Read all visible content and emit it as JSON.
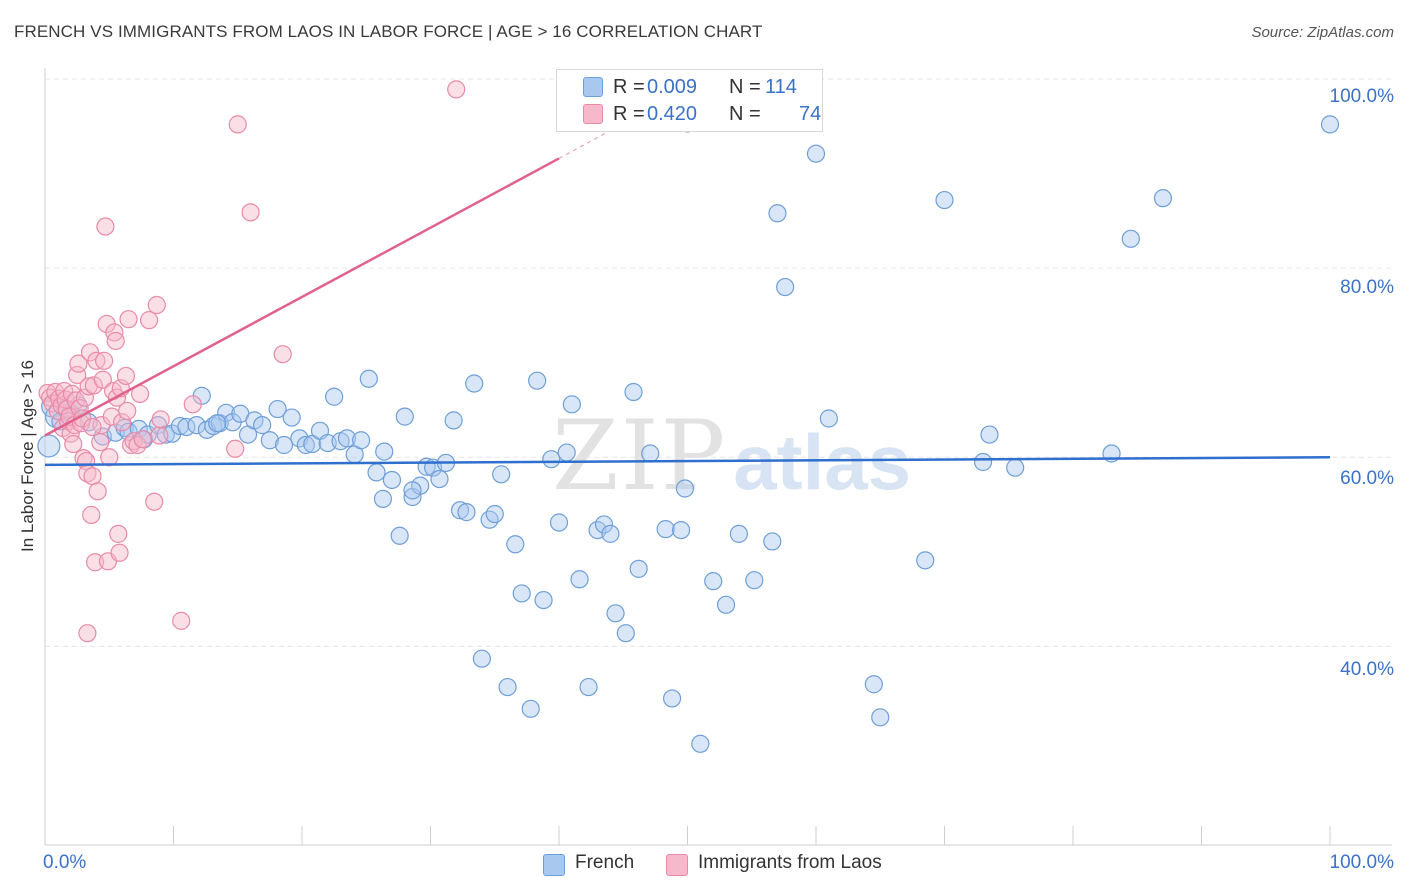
{
  "header": {
    "title": "FRENCH VS IMMIGRANTS FROM LAOS IN LABOR FORCE | AGE > 16 CORRELATION CHART",
    "source": "Source: ZipAtlas.com"
  },
  "watermark": {
    "zip": "ZIP",
    "atlas": "atlas"
  },
  "legend": {
    "french": {
      "r_label": "R =",
      "r_value": "0.009",
      "n_label": "N =",
      "n_value": "114"
    },
    "laos": {
      "r_label": "R =",
      "r_value": "0.420",
      "n_label": "N =",
      "n_value": "74"
    }
  },
  "bottom_legend": {
    "french": "French",
    "laos": "Immigrants from Laos"
  },
  "axes": {
    "ylabel": "In Labor Force | Age > 16",
    "x_min_label": "0.0%",
    "x_max_label": "100.0%",
    "y_tick_labels": [
      "100.0%",
      "80.0%",
      "60.0%",
      "40.0%"
    ]
  },
  "colors": {
    "french_fill": "#a9c8f0",
    "french_stroke": "#6f9fd8",
    "french_line": "#2f6fce",
    "laos_fill": "#f6b8ca",
    "laos_stroke": "#e98aa8",
    "laos_line": "#e0628c",
    "axis_text": "#3a72c9",
    "grid": "#e6e6e6"
  },
  "chart_data": {
    "type": "scatter",
    "title": "FRENCH VS IMMIGRANTS FROM LAOS IN LABOR FORCE | AGE > 16 CORRELATION CHART",
    "xlabel": "",
    "ylabel": "In Labor Force | Age > 16",
    "xlim": [
      0,
      100
    ],
    "ylim": [
      19,
      100
    ],
    "yticks": [
      40,
      60,
      80,
      100
    ],
    "grid": true,
    "legend_position": "top-center",
    "series": [
      {
        "name": "French",
        "r": 0.009,
        "n": 114,
        "trend": {
          "x": [
            0,
            100
          ],
          "y": [
            59.2,
            60.0
          ]
        },
        "points": [
          [
            0.3,
            61.2
          ],
          [
            0.6,
            65.4
          ],
          [
            0.9,
            64.3
          ],
          [
            1.2,
            63.8
          ],
          [
            1.6,
            65.1
          ],
          [
            2.0,
            64.7
          ],
          [
            2.6,
            65.5
          ],
          [
            3.4,
            63.7
          ],
          [
            4.5,
            62.2
          ],
          [
            5.5,
            62.6
          ],
          [
            6.2,
            63.1
          ],
          [
            6.5,
            62.7
          ],
          [
            7.3,
            63.0
          ],
          [
            7.7,
            61.9
          ],
          [
            8.0,
            62.4
          ],
          [
            8.8,
            63.4
          ],
          [
            9.4,
            62.4
          ],
          [
            9.9,
            62.5
          ],
          [
            10.5,
            63.3
          ],
          [
            11.0,
            63.2
          ],
          [
            11.8,
            63.4
          ],
          [
            12.2,
            66.5
          ],
          [
            12.6,
            62.9
          ],
          [
            13.1,
            63.3
          ],
          [
            13.6,
            63.6
          ],
          [
            14.1,
            64.7
          ],
          [
            14.6,
            63.7
          ],
          [
            15.2,
            64.6
          ],
          [
            15.8,
            62.4
          ],
          [
            16.3,
            63.9
          ],
          [
            16.9,
            63.4
          ],
          [
            17.5,
            61.8
          ],
          [
            18.1,
            65.1
          ],
          [
            18.6,
            61.3
          ],
          [
            19.2,
            64.2
          ],
          [
            19.8,
            62.0
          ],
          [
            20.3,
            61.3
          ],
          [
            20.8,
            61.4
          ],
          [
            21.4,
            62.8
          ],
          [
            22.0,
            61.5
          ],
          [
            22.5,
            66.4
          ],
          [
            23.0,
            61.7
          ],
          [
            23.5,
            62.0
          ],
          [
            24.1,
            60.3
          ],
          [
            24.6,
            61.8
          ],
          [
            25.2,
            68.3
          ],
          [
            25.8,
            58.4
          ],
          [
            26.4,
            60.6
          ],
          [
            27.0,
            57.6
          ],
          [
            27.6,
            51.7
          ],
          [
            28.0,
            64.3
          ],
          [
            28.6,
            55.8
          ],
          [
            29.2,
            57.0
          ],
          [
            29.7,
            59.0
          ],
          [
            30.2,
            58.9
          ],
          [
            30.7,
            57.7
          ],
          [
            31.2,
            59.4
          ],
          [
            31.8,
            63.9
          ],
          [
            32.3,
            54.4
          ],
          [
            32.8,
            54.2
          ],
          [
            33.4,
            67.8
          ],
          [
            34.0,
            38.7
          ],
          [
            34.6,
            53.4
          ],
          [
            35.0,
            54.0
          ],
          [
            35.5,
            58.2
          ],
          [
            36.0,
            35.7
          ],
          [
            36.6,
            50.8
          ],
          [
            37.1,
            45.6
          ],
          [
            37.8,
            33.4
          ],
          [
            38.3,
            68.1
          ],
          [
            38.8,
            44.9
          ],
          [
            39.4,
            59.8
          ],
          [
            40.0,
            53.1
          ],
          [
            40.6,
            60.5
          ],
          [
            41.0,
            65.6
          ],
          [
            41.6,
            47.1
          ],
          [
            42.3,
            35.7
          ],
          [
            43.0,
            52.3
          ],
          [
            43.5,
            52.9
          ],
          [
            44.0,
            51.9
          ],
          [
            44.4,
            43.5
          ],
          [
            45.2,
            41.4
          ],
          [
            45.8,
            66.9
          ],
          [
            46.2,
            48.2
          ],
          [
            47.1,
            60.4
          ],
          [
            48.3,
            52.4
          ],
          [
            48.8,
            34.5
          ],
          [
            49.5,
            52.3
          ],
          [
            49.8,
            56.7
          ],
          [
            50.0,
            95.3
          ],
          [
            51.0,
            29.7
          ],
          [
            52.0,
            46.9
          ],
          [
            53.0,
            44.4
          ],
          [
            54.0,
            51.9
          ],
          [
            55.2,
            47.0
          ],
          [
            56.6,
            51.1
          ],
          [
            57.0,
            85.8
          ],
          [
            57.6,
            78.0
          ],
          [
            60.0,
            92.1
          ],
          [
            61.0,
            64.1
          ],
          [
            65.0,
            32.5
          ],
          [
            64.5,
            36.0
          ],
          [
            68.5,
            49.1
          ],
          [
            70.0,
            87.2
          ],
          [
            73.0,
            59.5
          ],
          [
            73.5,
            62.4
          ],
          [
            75.5,
            58.9
          ],
          [
            83.0,
            60.4
          ],
          [
            84.5,
            83.1
          ],
          [
            87.0,
            87.4
          ],
          [
            100.0,
            95.2
          ],
          [
            28.6,
            56.5
          ],
          [
            13.4,
            63.6
          ],
          [
            26.3,
            55.6
          ]
        ]
      },
      {
        "name": "Immigrants from Laos",
        "r": 0.42,
        "n": 74,
        "trend": {
          "x": [
            0,
            40
          ],
          "y": [
            62.3,
            91.6
          ]
        },
        "trend_dashed": {
          "x": [
            40,
            50
          ],
          "y": [
            91.6,
            99.0
          ]
        },
        "points": [
          [
            0.2,
            66.8
          ],
          [
            0.4,
            66.3
          ],
          [
            0.6,
            65.7
          ],
          [
            0.8,
            66.9
          ],
          [
            1.0,
            64.9
          ],
          [
            1.1,
            66.2
          ],
          [
            1.3,
            65.5
          ],
          [
            1.4,
            63.1
          ],
          [
            1.5,
            67.0
          ],
          [
            1.6,
            66.1
          ],
          [
            1.7,
            65.1
          ],
          [
            1.8,
            63.8
          ],
          [
            1.9,
            64.3
          ],
          [
            2.0,
            62.5
          ],
          [
            2.1,
            66.7
          ],
          [
            2.2,
            61.4
          ],
          [
            2.3,
            63.4
          ],
          [
            2.4,
            66.0
          ],
          [
            2.5,
            68.7
          ],
          [
            2.6,
            69.9
          ],
          [
            2.7,
            65.2
          ],
          [
            2.8,
            63.6
          ],
          [
            2.9,
            64.1
          ],
          [
            3.0,
            59.9
          ],
          [
            3.1,
            66.3
          ],
          [
            3.2,
            59.6
          ],
          [
            3.3,
            58.3
          ],
          [
            3.4,
            67.5
          ],
          [
            3.5,
            71.1
          ],
          [
            3.6,
            53.9
          ],
          [
            3.7,
            58.0
          ],
          [
            3.8,
            67.6
          ],
          [
            3.9,
            48.9
          ],
          [
            4.0,
            70.2
          ],
          [
            4.1,
            56.4
          ],
          [
            4.3,
            61.6
          ],
          [
            4.4,
            63.4
          ],
          [
            4.5,
            68.2
          ],
          [
            4.6,
            70.2
          ],
          [
            4.7,
            84.4
          ],
          [
            4.8,
            74.1
          ],
          [
            4.9,
            49.0
          ],
          [
            5.0,
            60.0
          ],
          [
            5.2,
            64.3
          ],
          [
            5.3,
            67.0
          ],
          [
            5.4,
            73.2
          ],
          [
            5.5,
            72.3
          ],
          [
            5.6,
            66.3
          ],
          [
            5.7,
            51.9
          ],
          [
            5.8,
            49.9
          ],
          [
            5.9,
            67.3
          ],
          [
            6.0,
            63.7
          ],
          [
            6.3,
            68.6
          ],
          [
            6.4,
            64.9
          ],
          [
            6.5,
            74.6
          ],
          [
            6.7,
            61.3
          ],
          [
            6.9,
            61.7
          ],
          [
            7.2,
            61.3
          ],
          [
            7.4,
            66.7
          ],
          [
            7.6,
            61.9
          ],
          [
            8.1,
            74.5
          ],
          [
            8.5,
            55.3
          ],
          [
            8.7,
            76.1
          ],
          [
            8.9,
            62.3
          ],
          [
            10.6,
            42.7
          ],
          [
            11.5,
            65.6
          ],
          [
            14.8,
            60.9
          ],
          [
            15.0,
            95.2
          ],
          [
            16.0,
            85.9
          ],
          [
            18.5,
            70.9
          ],
          [
            32.0,
            98.9
          ],
          [
            3.3,
            41.4
          ],
          [
            3.7,
            63.2
          ],
          [
            9.0,
            64.0
          ]
        ]
      }
    ]
  }
}
